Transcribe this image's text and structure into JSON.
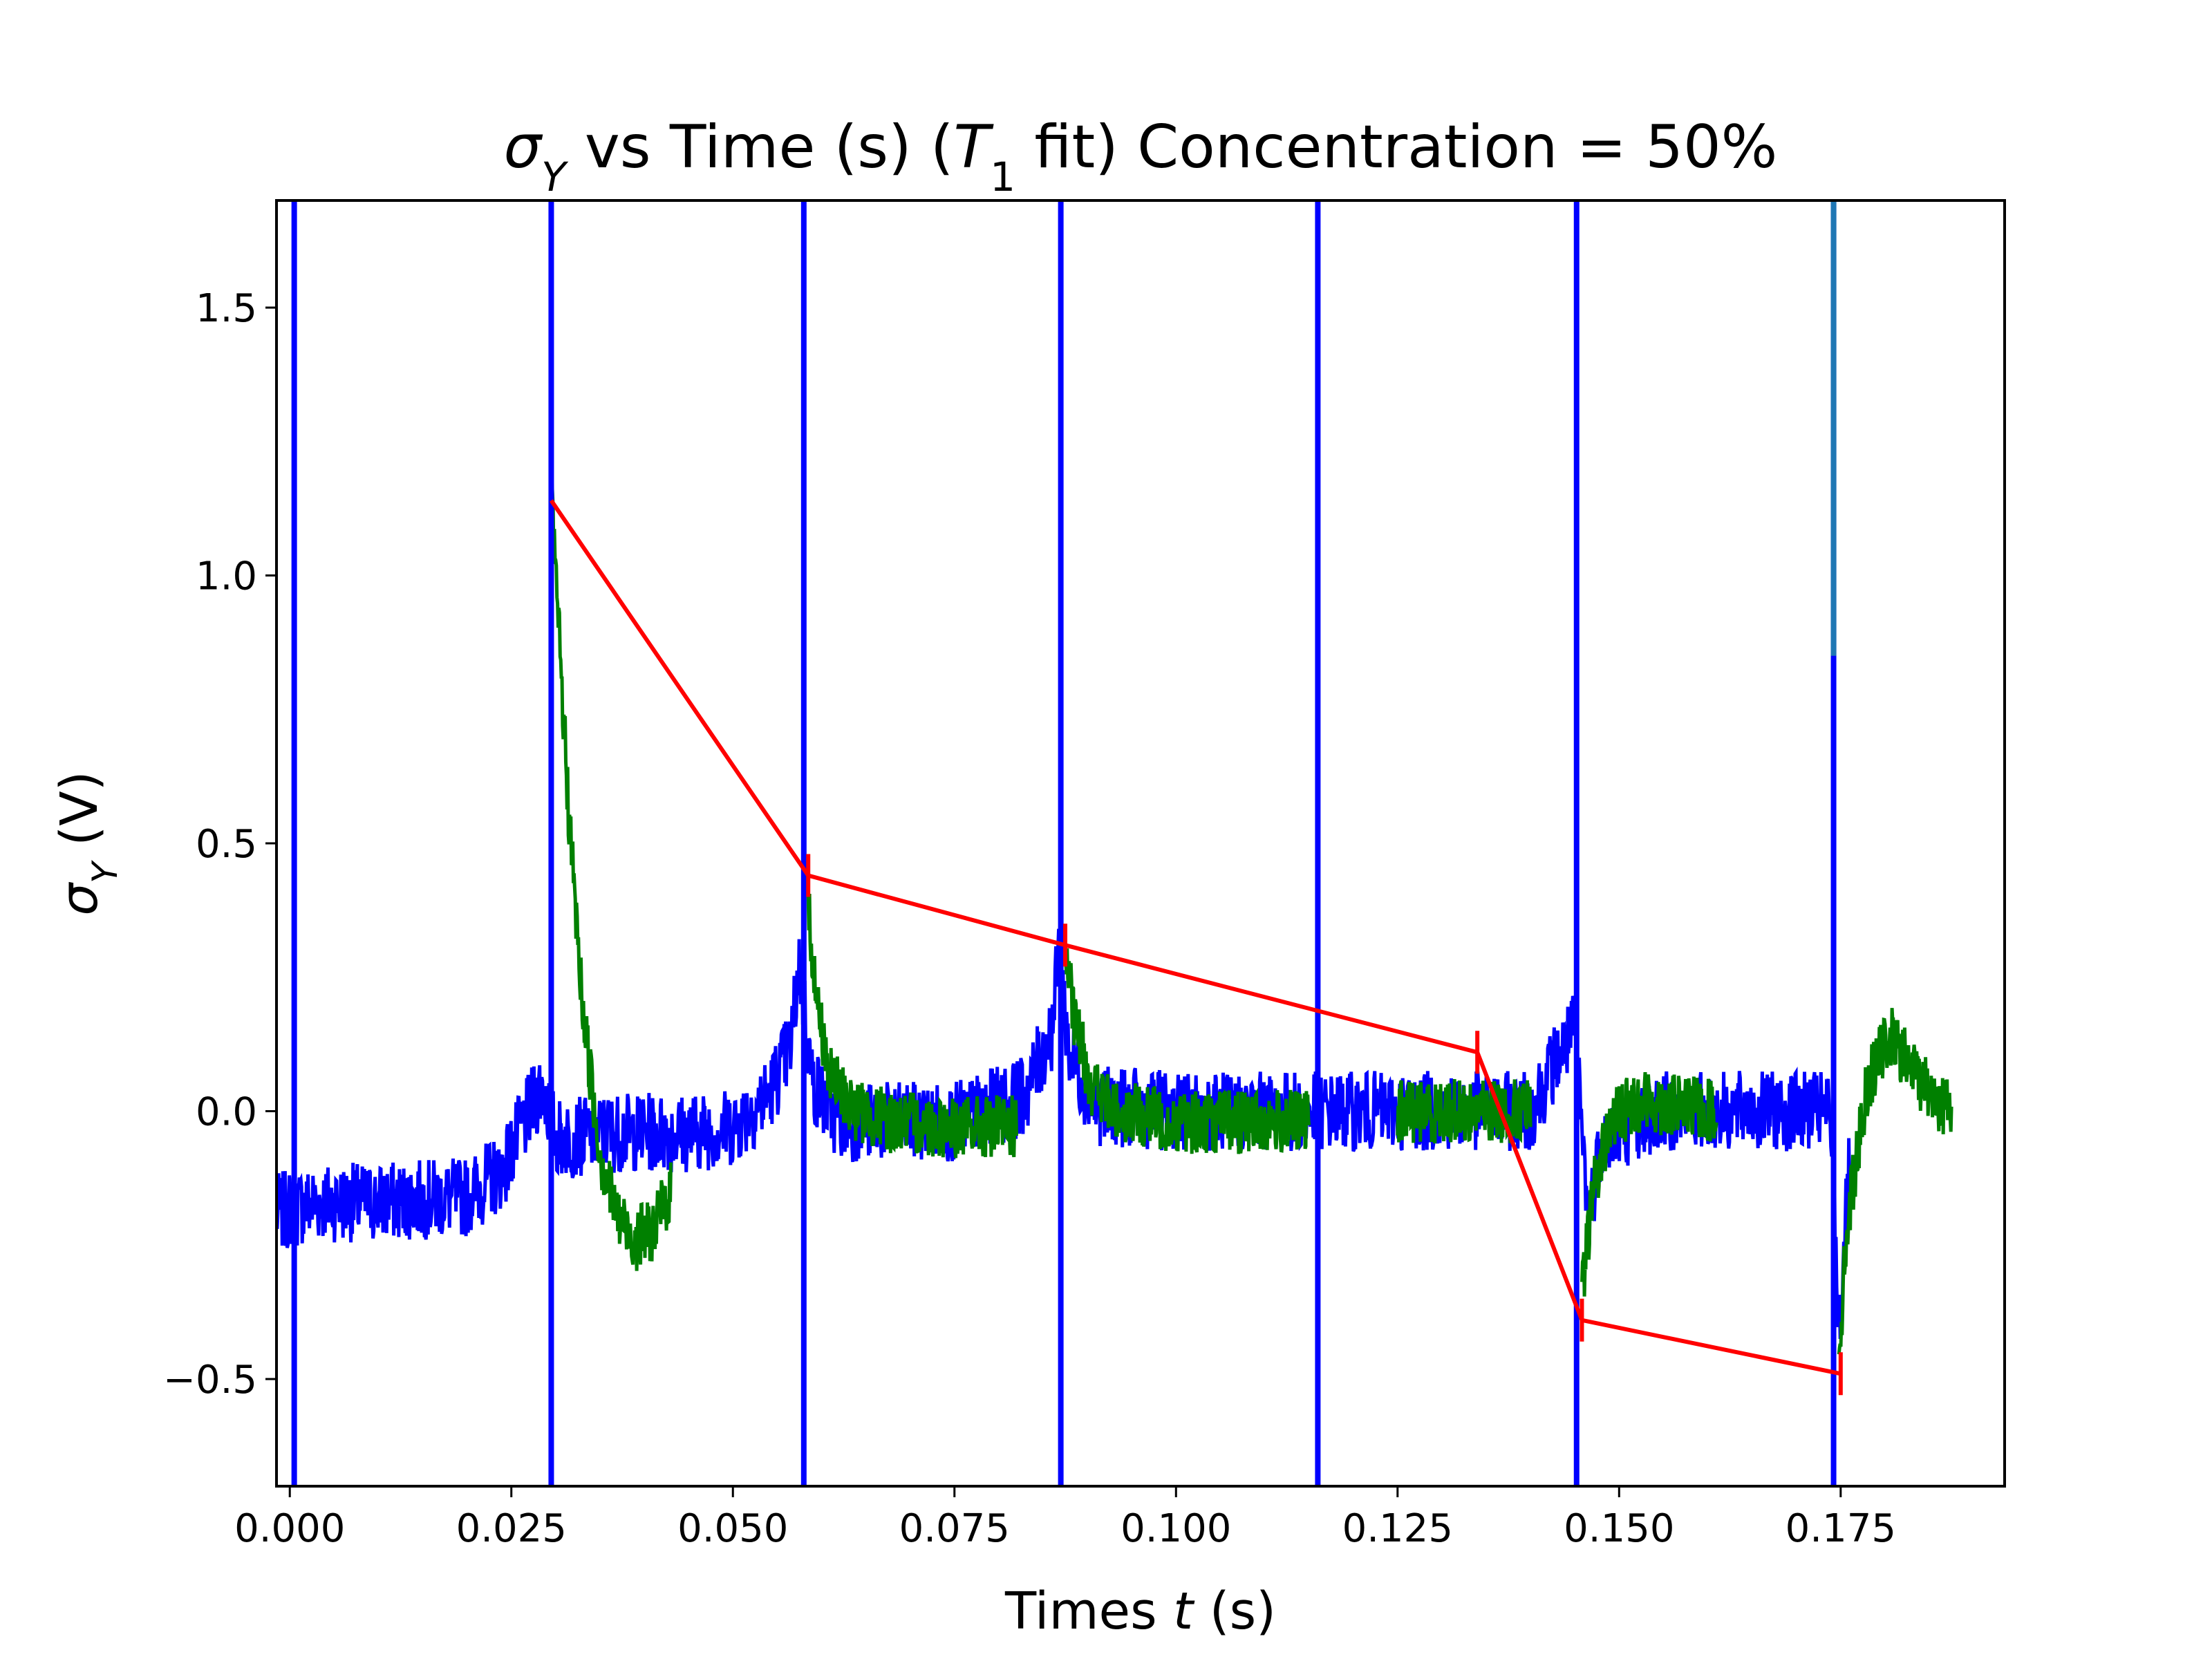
{
  "chart_data": {
    "type": "line",
    "title": {
      "sigma": "σ",
      "sub": "Y",
      "middle": " vs Time (s) (",
      "T": "T",
      "tsub": "1",
      "after": " fit) Concentration = 50%"
    },
    "xlabel": {
      "before": "Times ",
      "var": "t",
      "after": " (s)"
    },
    "ylabel": {
      "sigma": "σ",
      "sub": "Y",
      "after": " (V)"
    },
    "xlim": [
      -0.0015,
      0.1935
    ],
    "ylim": [
      -0.7,
      1.7
    ],
    "xticks": [
      0.0,
      0.025,
      0.05,
      0.075,
      0.1,
      0.125,
      0.15,
      0.175
    ],
    "xtick_labels": [
      "0.000",
      "0.025",
      "0.050",
      "0.075",
      "0.100",
      "0.125",
      "0.150",
      "0.175"
    ],
    "yticks": [
      -0.5,
      0.0,
      0.5,
      1.0,
      1.5
    ],
    "ytick_labels": [
      "−0.5",
      "0.0",
      "0.5",
      "1.0",
      "1.5"
    ],
    "grid": false,
    "colors": {
      "raw": "#0000ff",
      "fit_window": "#008000",
      "fit": "#ff0000",
      "last_spike": "#1f77b4"
    },
    "pulse_times": [
      0.0005,
      0.0295,
      0.058,
      0.087,
      0.116,
      0.1452,
      0.1742
    ],
    "raw_signal": {
      "x": [
        -0.0015,
        0.003,
        0.01,
        0.02,
        0.024,
        0.0285,
        0.03,
        0.032,
        0.035,
        0.045,
        0.05,
        0.054,
        0.0565,
        0.0575,
        0.059,
        0.062,
        0.075,
        0.083,
        0.086,
        0.0868,
        0.088,
        0.091,
        0.1,
        0.115,
        0.13,
        0.14,
        0.143,
        0.145,
        0.1465,
        0.148,
        0.155,
        0.162,
        0.17,
        0.1738,
        0.1748,
        0.176
      ],
      "y": [
        -0.19,
        -0.17,
        -0.17,
        -0.16,
        -0.11,
        0.05,
        -0.05,
        -0.05,
        -0.04,
        -0.04,
        -0.03,
        0.03,
        0.12,
        0.28,
        0.05,
        -0.02,
        -0.02,
        0.03,
        0.15,
        0.3,
        0.1,
        0.01,
        0.0,
        0.0,
        0.0,
        0.0,
        0.1,
        0.15,
        -0.2,
        -0.05,
        0.0,
        0.0,
        0.0,
        0.0,
        -0.4,
        -0.1
      ],
      "noise_amplitude": 0.075
    },
    "fit_segments": [
      {
        "x": [
          0.0295,
          0.0305,
          0.0315,
          0.033,
          0.035,
          0.037,
          0.039,
          0.041,
          0.043
        ],
        "y": [
          1.14,
          0.85,
          0.55,
          0.2,
          -0.08,
          -0.2,
          -0.24,
          -0.22,
          -0.15
        ]
      },
      {
        "x": [
          0.0585,
          0.0595,
          0.061,
          0.064,
          0.068,
          0.075,
          0.082
        ],
        "y": [
          0.38,
          0.2,
          0.06,
          0.0,
          -0.02,
          -0.03,
          -0.03
        ]
      },
      {
        "x": [
          0.0875,
          0.0885,
          0.0905,
          0.093,
          0.1,
          0.11,
          0.115
        ],
        "y": [
          0.3,
          0.17,
          0.05,
          0.0,
          -0.02,
          -0.02,
          -0.02
        ]
      },
      {
        "x": [
          0.125,
          0.13,
          0.135,
          0.14
        ],
        "y": [
          0.0,
          0.0,
          0.0,
          0.0
        ]
      },
      {
        "x": [
          0.1458,
          0.147,
          0.149,
          0.152,
          0.156,
          0.161
        ],
        "y": [
          -0.35,
          -0.15,
          -0.02,
          0.02,
          0.01,
          0.0
        ]
      },
      {
        "x": [
          0.1748,
          0.1758,
          0.178,
          0.1805,
          0.183,
          0.1855,
          0.1875
        ],
        "y": [
          -0.45,
          -0.2,
          0.05,
          0.14,
          0.08,
          0.03,
          0.0
        ]
      }
    ],
    "fit_line": {
      "x": [
        0.0295,
        0.0585,
        0.0875,
        0.134,
        0.1458,
        0.175
      ],
      "y": [
        1.14,
        0.44,
        0.31,
        0.11,
        -0.39,
        -0.49
      ]
    },
    "series": [
      {
        "name": "",
        "color": "#0000ff"
      },
      {
        "name": "",
        "color": "#008000"
      },
      {
        "name": "",
        "color": "#ff0000"
      }
    ]
  }
}
